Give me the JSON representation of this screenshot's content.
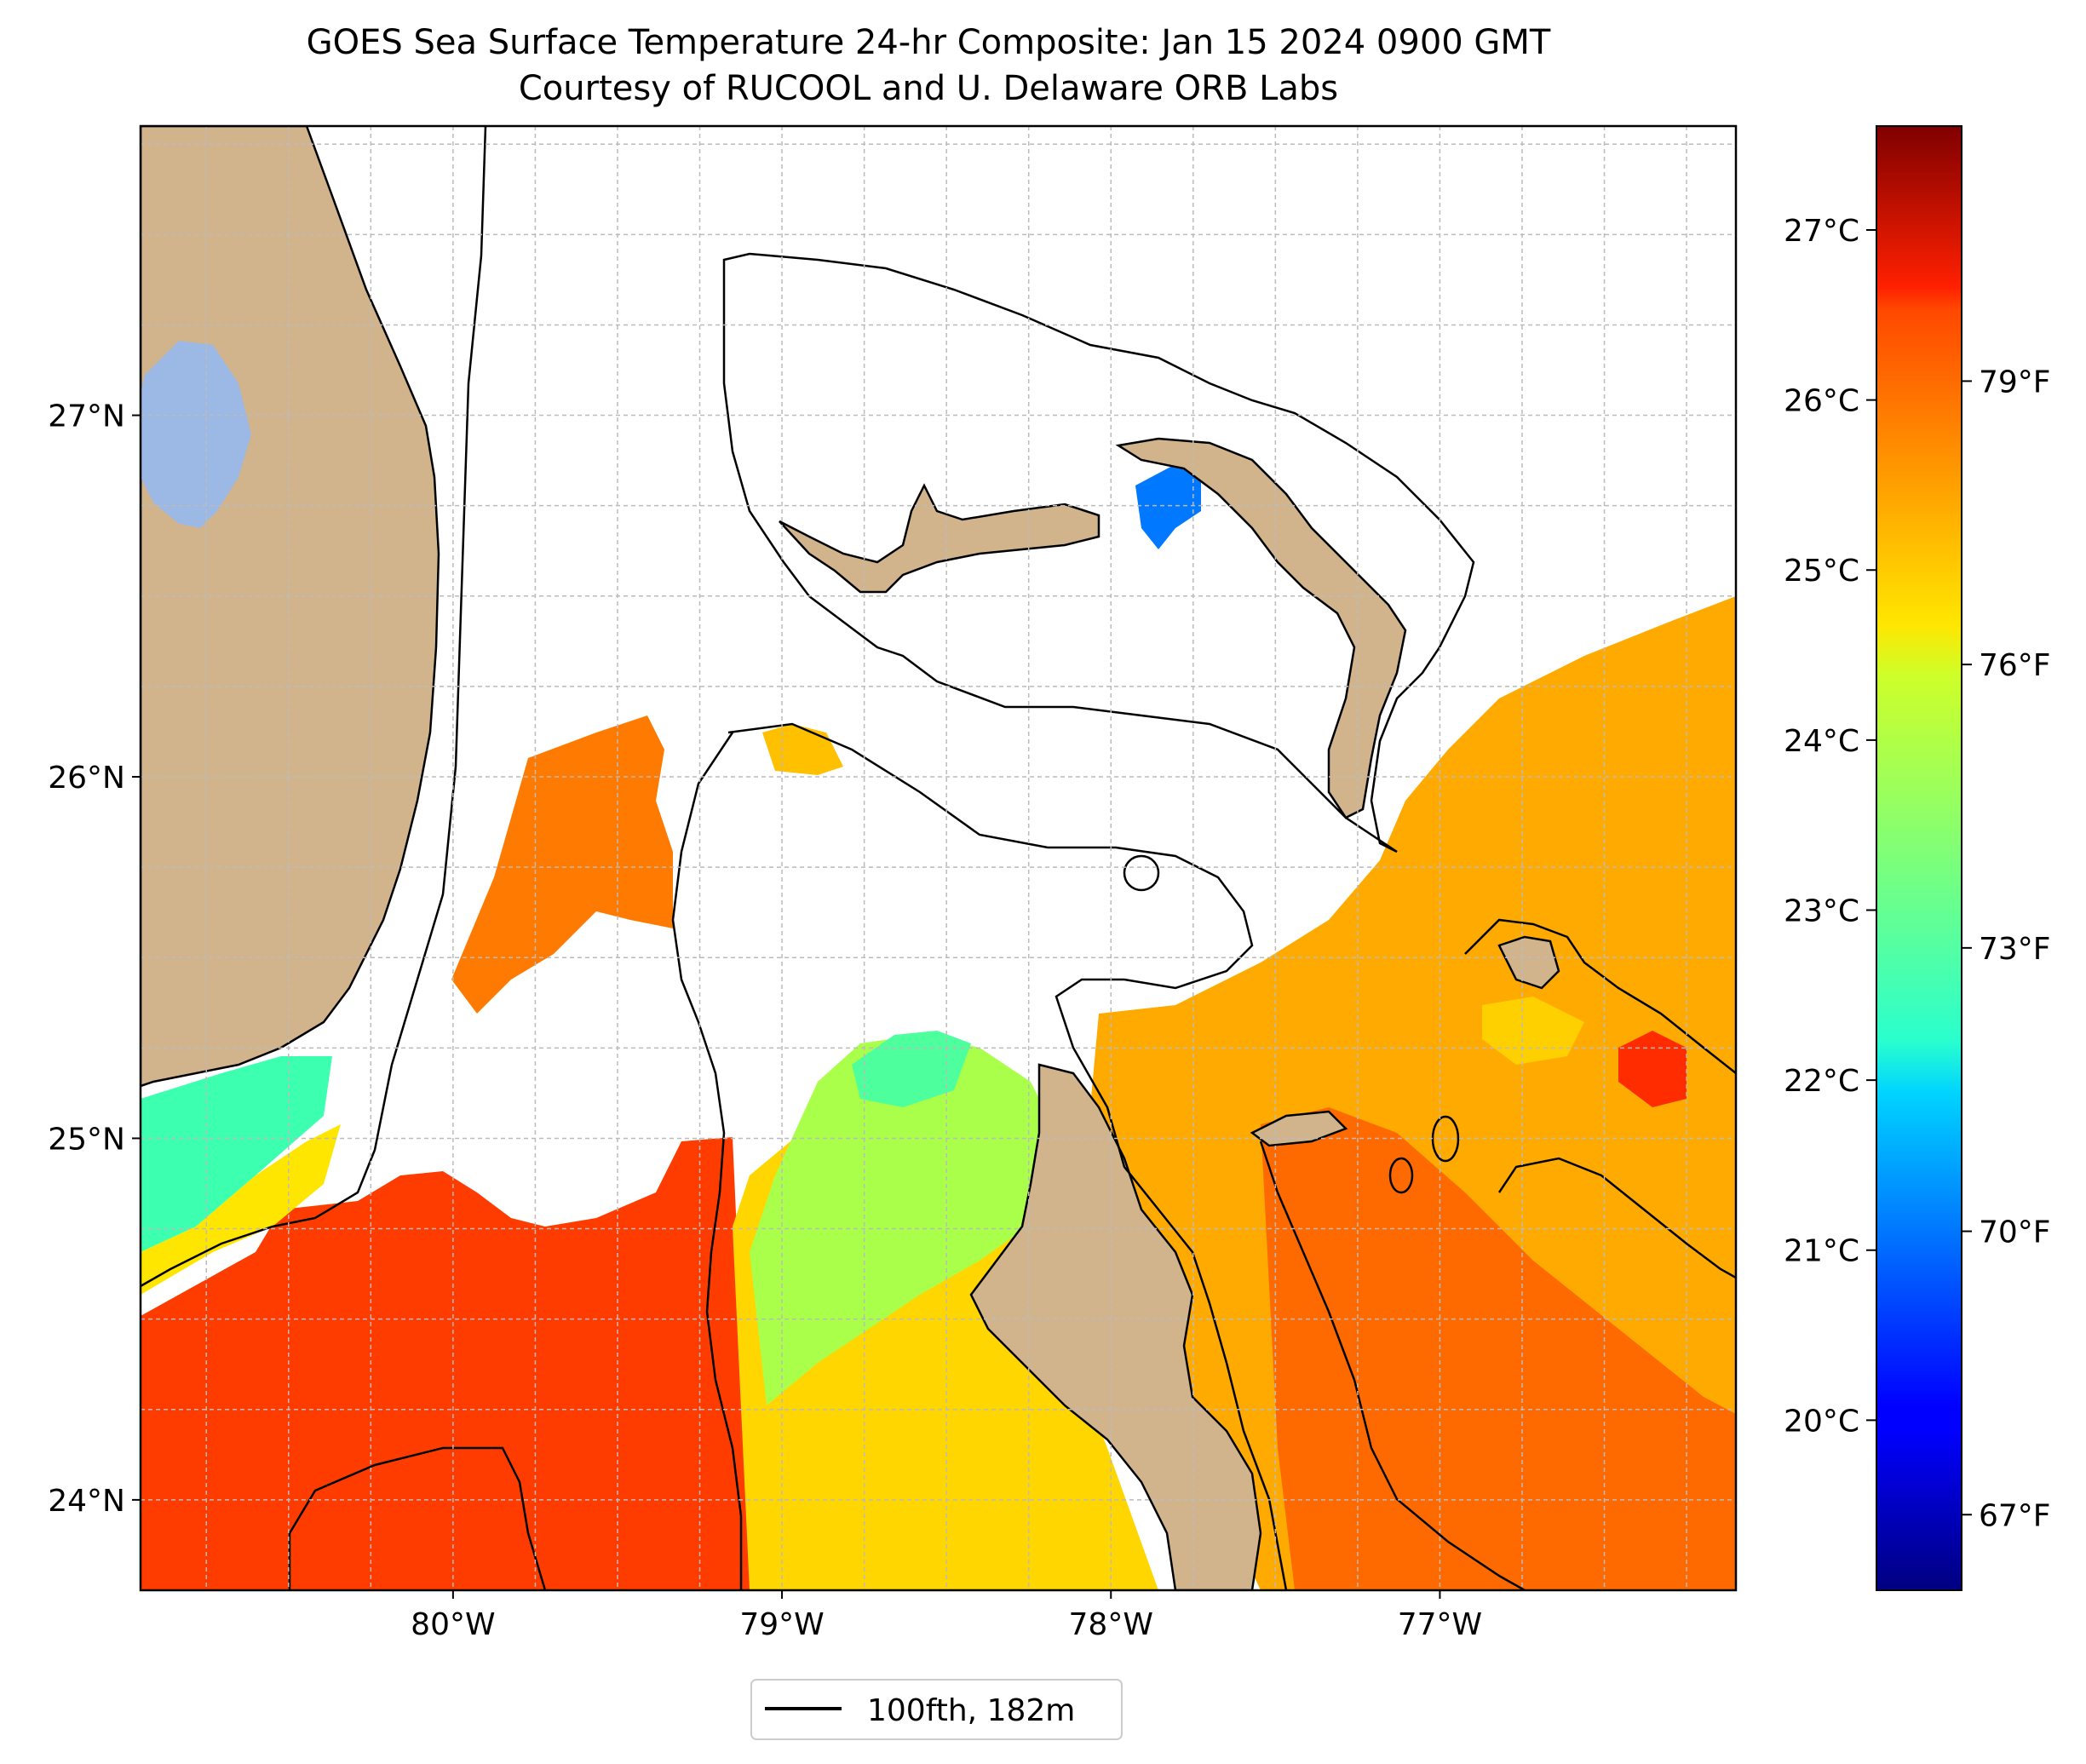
{
  "title": {
    "line1": "GOES Sea Surface Temperature 24-hr Composite: Jan 15 2024 0900 GMT",
    "line2": "Courtesy of RUCOOL and U. Delaware ORB Labs"
  },
  "map": {
    "lon_range": [
      -80.95,
      -76.1
    ],
    "lat_range": [
      23.75,
      27.8
    ],
    "lat_ticks": [
      {
        "value": 27,
        "label": "27°N"
      },
      {
        "value": 26,
        "label": "26°N"
      },
      {
        "value": 25,
        "label": "25°N"
      },
      {
        "value": 24,
        "label": "24°N"
      }
    ],
    "lon_ticks": [
      {
        "value": -80,
        "label": "80°W"
      },
      {
        "value": -79,
        "label": "79°W"
      },
      {
        "value": -78,
        "label": "78°W"
      },
      {
        "value": -77,
        "label": "77°W"
      }
    ],
    "grid": true,
    "colors": {
      "land": "#d2b48c",
      "lake": "#9cb8e4",
      "coast": "#000000",
      "grid": "#bbbbbb"
    }
  },
  "colorbar": {
    "colormap": "jet",
    "range_f": [
      66.2,
      81.7
    ],
    "celsius_ticks": [
      {
        "value": 27,
        "label": "27°C"
      },
      {
        "value": 26,
        "label": "26°C"
      },
      {
        "value": 25,
        "label": "25°C"
      },
      {
        "value": 24,
        "label": "24°C"
      },
      {
        "value": 23,
        "label": "23°C"
      },
      {
        "value": 22,
        "label": "22°C"
      },
      {
        "value": 21,
        "label": "21°C"
      },
      {
        "value": 20,
        "label": "20°C"
      }
    ],
    "fahrenheit_ticks": [
      {
        "value": 79,
        "label": "79°F"
      },
      {
        "value": 76,
        "label": "76°F"
      },
      {
        "value": 73,
        "label": "73°F"
      },
      {
        "value": 70,
        "label": "70°F"
      },
      {
        "value": 67,
        "label": "67°F"
      }
    ]
  },
  "legend": {
    "label": "100fth, 182m",
    "line_color": "#000000",
    "placement": "below-map-center"
  }
}
